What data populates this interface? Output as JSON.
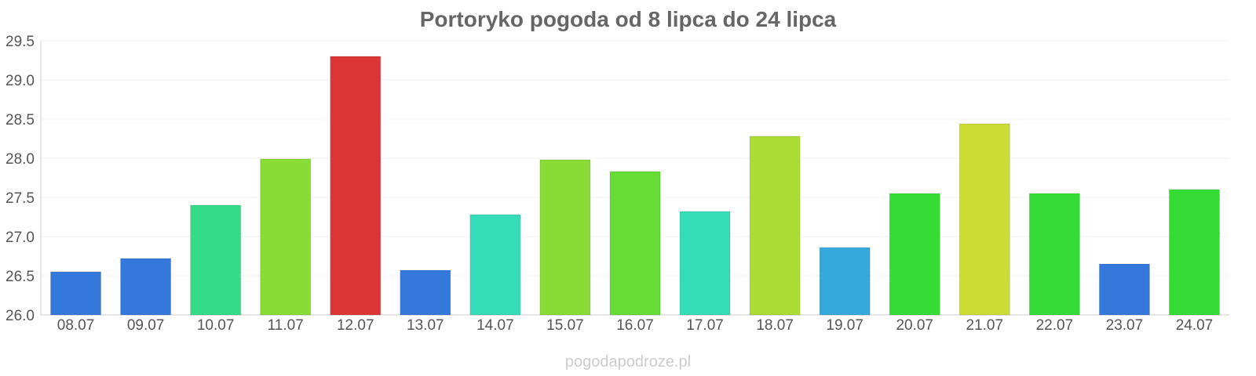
{
  "chart_data": {
    "type": "bar",
    "title": "Portoryko pogoda od 8 lipca do 24 lipca",
    "xlabel": "",
    "ylabel": "",
    "ylim": [
      26.0,
      29.5
    ],
    "yticks": [
      "26.0",
      "26.5",
      "27.0",
      "27.5",
      "28.0",
      "28.5",
      "29.0",
      "29.5"
    ],
    "grid": true,
    "legend": "none",
    "categories": [
      "08.07",
      "09.07",
      "10.07",
      "11.07",
      "12.07",
      "13.07",
      "14.07",
      "15.07",
      "16.07",
      "17.07",
      "18.07",
      "19.07",
      "20.07",
      "21.07",
      "22.07",
      "23.07",
      "24.07"
    ],
    "values": [
      26.55,
      26.72,
      27.4,
      27.99,
      29.3,
      26.57,
      27.28,
      27.98,
      27.83,
      27.32,
      28.28,
      26.86,
      27.55,
      28.44,
      27.55,
      26.65,
      27.6
    ],
    "colors": [
      "#3478dc",
      "#3478dc",
      "#35dc88",
      "#88dc35",
      "#dc3535",
      "#3478dc",
      "#35dcb8",
      "#88dc35",
      "#66dc35",
      "#35dcb8",
      "#aadc35",
      "#35a8dc",
      "#35dc35",
      "#ccdc35",
      "#35dc35",
      "#3478dc",
      "#35dc35"
    ]
  },
  "watermark": "pogodapodroze.pl"
}
